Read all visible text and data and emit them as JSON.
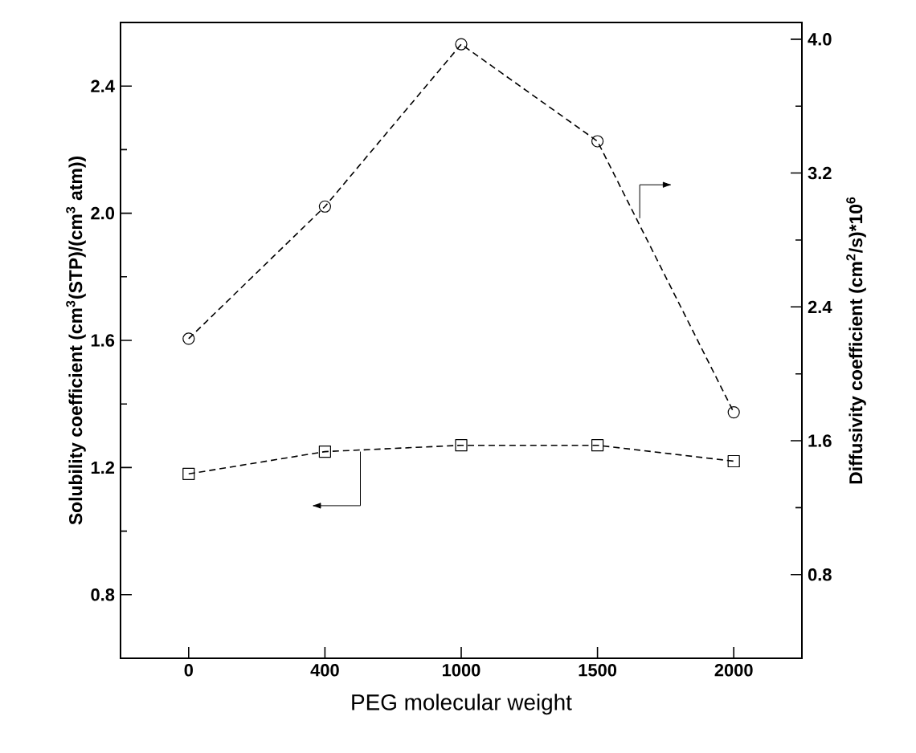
{
  "chart_data": {
    "type": "line",
    "xlabel": "PEG molecular weight",
    "ylabel": "Solubility coefficient (cm$^{3}$(STP)/(cm$^{3}$ atm))",
    "y2label": "Diffusivity coefficient (cm$^{2}$/s)*10$^{6}$",
    "categories": [
      "0",
      "400",
      "1000",
      "1500",
      "2000"
    ],
    "series": [
      {
        "values": [
          1.18,
          1.25,
          1.27,
          1.27,
          1.22
        ],
        "color": "#000000",
        "marker": "square"
      },
      {
        "values": [
          2.21,
          3.0,
          3.97,
          3.39,
          1.77
        ],
        "color": "#000000",
        "marker": "circle",
        "axis": "y2"
      }
    ],
    "ylim": [
      0.6,
      2.6
    ],
    "yticks": [
      0.8,
      1.2,
      1.6,
      {
        "value": 2,
        "label": "2.0"
      },
      2.4
    ],
    "y2lim": [
      0.3,
      4.1
    ],
    "y2ticks": [
      0.8,
      1.6,
      2.4,
      3.2,
      {
        "value": 4,
        "label": "4.0"
      }
    ],
    "line_style": "dashed"
  }
}
